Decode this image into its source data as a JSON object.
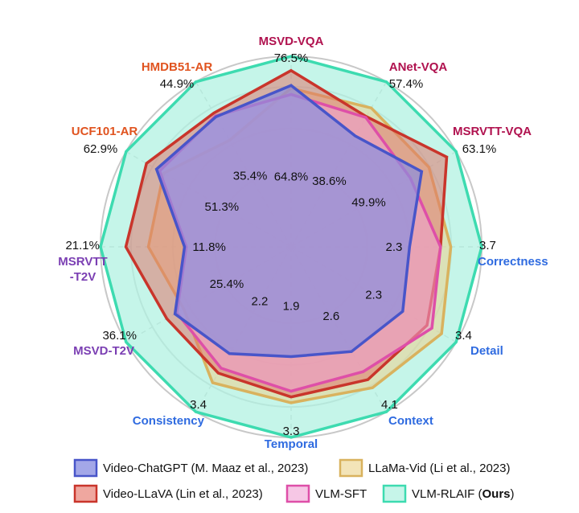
{
  "chart_data": {
    "type": "radar",
    "axes": [
      {
        "name": "MSVD-VQA",
        "max": "76.5%",
        "max_value": 76.5,
        "color": "#b0124f"
      },
      {
        "name": "ANet-VQA",
        "max": "57.4%",
        "max_value": 57.4,
        "color": "#b0124f"
      },
      {
        "name": "MSRVTT-VQA",
        "max": "63.1%",
        "max_value": 63.1,
        "color": "#b0124f"
      },
      {
        "name": "Correctness",
        "max": "3.7",
        "max_value": 3.7,
        "color": "#2f6be0"
      },
      {
        "name": "Detail",
        "max": "3.4",
        "max_value": 3.4,
        "color": "#2f6be0"
      },
      {
        "name": "Context",
        "max": "4.1",
        "max_value": 4.1,
        "color": "#2f6be0"
      },
      {
        "name": "Temporal",
        "max": "3.3",
        "max_value": 3.3,
        "color": "#2f6be0"
      },
      {
        "name": "Consistency",
        "max": "3.4",
        "max_value": 3.4,
        "color": "#2f6be0"
      },
      {
        "name": "MSVD-T2V",
        "max": "36.1%",
        "max_value": 36.1,
        "color": "#7b3fb3"
      },
      {
        "name": "MSRVTT\n-T2V",
        "max": "21.1%",
        "max_value": 21.1,
        "color": "#7b3fb3"
      },
      {
        "name": "UCF101-AR",
        "max": "62.9%",
        "max_value": 62.9,
        "color": "#e0531f"
      },
      {
        "name": "HMDB51-AR",
        "max": "44.9%",
        "max_value": 44.9,
        "color": "#e0531f"
      }
    ],
    "inner_labels": [
      "64.8%",
      "38.6%",
      "49.9%",
      "2.3",
      "2.3",
      "2.6",
      "1.9",
      "2.2",
      "25.4%",
      "11.8%",
      "51.3%",
      "35.4%"
    ],
    "series": [
      {
        "name": "VLM-RLAIF (Ours)",
        "stroke": "#3ddbb0",
        "fill": "#b2f2e2",
        "fill_opacity": 0.75,
        "values": [
          76.5,
          57.4,
          63.1,
          3.7,
          3.4,
          4.1,
          3.3,
          3.4,
          36.1,
          21.1,
          62.9,
          44.9
        ]
      },
      {
        "name": "LLaMa-Vid (Li et al., 2023)",
        "stroke": "#d9b25e",
        "fill": "#ecd08e",
        "fill_opacity": 0.55,
        "values": [
          63.7,
          48.3,
          52.7,
          3.1,
          3.1,
          3.5,
          2.7,
          2.8,
          23.5,
          15.8,
          48.6,
          29.0
        ]
      },
      {
        "name": "Video-LLaVA (Lin et al., 2023)",
        "stroke": "#c9352b",
        "fill": "#e0776d",
        "fill_opacity": 0.55,
        "values": [
          70.8,
          45.3,
          59.5,
          2.9,
          2.8,
          3.3,
          2.6,
          2.6,
          27.2,
          18.3,
          55.1,
          36.4
        ]
      },
      {
        "name": "VLM-SFT",
        "stroke": "#de4fa8",
        "fill": "#f0a0d4",
        "fill_opacity": 0.55,
        "values": [
          61.2,
          45.0,
          45.6,
          2.9,
          2.9,
          3.1,
          2.5,
          2.5,
          25.0,
          11.6,
          50.1,
          35.6
        ]
      },
      {
        "name": "Video-ChatGPT (M. Maaz et al., 2023)",
        "stroke": "#4855c9",
        "fill": "#8a8fe0",
        "fill_opacity": 0.7,
        "values": [
          64.8,
          38.6,
          49.9,
          2.3,
          2.3,
          2.6,
          1.9,
          2.2,
          25.4,
          11.8,
          51.3,
          35.4
        ]
      }
    ]
  },
  "legend": {
    "items": [
      {
        "label": "Video-ChatGPT (M. Maaz et al., 2023)",
        "bold": "",
        "suffix": "",
        "stroke": "#4855c9",
        "fill": "#a3a7e8"
      },
      {
        "label": "LLaMa-Vid (Li et al., 2023)",
        "bold": "",
        "suffix": "",
        "stroke": "#d9b25e",
        "fill": "#f3e4b8"
      },
      {
        "label": "Video-LLaVA (Lin et al., 2023)",
        "bold": "",
        "suffix": "",
        "stroke": "#c9352b",
        "fill": "#efa79f"
      },
      {
        "label": "VLM-SFT",
        "bold": "",
        "suffix": "",
        "stroke": "#de4fa8",
        "fill": "#f6c7e5"
      },
      {
        "label": "VLM-RLAIF (",
        "bold": "Ours",
        "suffix": ")",
        "stroke": "#3ddbb0",
        "fill": "#c6f5e9"
      }
    ]
  }
}
